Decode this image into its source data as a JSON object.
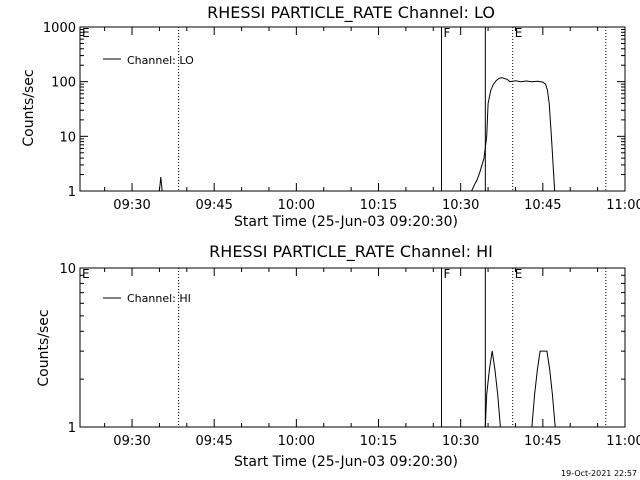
{
  "footer": {
    "timestamp": "19-Oct-2021 22:57"
  },
  "chart_data": [
    {
      "type": "line",
      "title": "RHESSI PARTICLE_RATE Channel: LO",
      "xlabel": "Start Time (25-Jun-03 09:20:30)",
      "ylabel": "Counts/sec",
      "yscale": "log",
      "xlim": [
        "09:20:30",
        "11:00:00"
      ],
      "ylim": [
        1,
        1000
      ],
      "xticks": [
        "09:30",
        "09:45",
        "10:00",
        "10:15",
        "10:30",
        "10:45",
        "11:00"
      ],
      "yticks": [
        "1",
        "10",
        "100",
        "1000"
      ],
      "legend": {
        "label": "Channel: LO",
        "placement": "top-left"
      },
      "markers": [
        {
          "label": "E",
          "time": "09:20:30",
          "style": "solid"
        },
        {
          "label": "",
          "time": "09:38:30",
          "style": "dotted"
        },
        {
          "label": "F",
          "time": "10:26:30",
          "style": "solid"
        },
        {
          "label": "",
          "time": "10:34:30",
          "style": "solid"
        },
        {
          "label": "E",
          "time": "10:39:30",
          "style": "dotted"
        },
        {
          "label": "",
          "time": "10:56:30",
          "style": "dotted"
        }
      ],
      "series": [
        {
          "name": "Channel: LO",
          "points": [
            [
              "09:35:00",
              1
            ],
            [
              "09:35:15",
              1.8
            ],
            [
              "09:35:30",
              1
            ],
            [
              "10:32:00",
              1
            ],
            [
              "10:32:30",
              1.3
            ],
            [
              "10:33:00",
              1.6
            ],
            [
              "10:33:30",
              2.2
            ],
            [
              "10:34:15",
              4
            ],
            [
              "10:34:45",
              10
            ],
            [
              "10:35:00",
              40
            ],
            [
              "10:35:30",
              70
            ],
            [
              "10:36:00",
              90
            ],
            [
              "10:36:30",
              105
            ],
            [
              "10:37:00",
              115
            ],
            [
              "10:37:30",
              118
            ],
            [
              "10:38:30",
              110
            ],
            [
              "10:39:00",
              100
            ],
            [
              "10:40:00",
              104
            ],
            [
              "10:41:00",
              100
            ],
            [
              "10:42:00",
              103
            ],
            [
              "10:43:00",
              100
            ],
            [
              "10:44:00",
              102
            ],
            [
              "10:45:00",
              98
            ],
            [
              "10:45:30",
              90
            ],
            [
              "10:45:50",
              70
            ],
            [
              "10:46:10",
              40
            ],
            [
              "10:46:30",
              12
            ],
            [
              "10:46:45",
              5
            ],
            [
              "10:47:00",
              1.8
            ],
            [
              "10:47:10",
              1
            ]
          ]
        }
      ]
    },
    {
      "type": "line",
      "title": "RHESSI PARTICLE_RATE Channel: HI",
      "xlabel": "Start Time (25-Jun-03 09:20:30)",
      "ylabel": "Counts/sec",
      "yscale": "log",
      "xlim": [
        "09:20:30",
        "11:00:00"
      ],
      "ylim": [
        1,
        10
      ],
      "xticks": [
        "09:30",
        "09:45",
        "10:00",
        "10:15",
        "10:30",
        "10:45",
        "11:00"
      ],
      "yticks": [
        "1",
        "10"
      ],
      "legend": {
        "label": "Channel: HI",
        "placement": "top-left"
      },
      "markers": [
        {
          "label": "E",
          "time": "09:20:30",
          "style": "solid"
        },
        {
          "label": "",
          "time": "09:38:30",
          "style": "dotted"
        },
        {
          "label": "F",
          "time": "10:26:30",
          "style": "solid"
        },
        {
          "label": "",
          "time": "10:34:30",
          "style": "solid"
        },
        {
          "label": "E",
          "time": "10:39:30",
          "style": "dotted"
        },
        {
          "label": "",
          "time": "10:56:30",
          "style": "dotted"
        }
      ],
      "series": [
        {
          "name": "Channel: HI",
          "points": [
            [
              "10:34:30",
              1
            ],
            [
              "10:34:45",
              1.6
            ],
            [
              "10:35:15",
              2.3
            ],
            [
              "10:35:45",
              3
            ],
            [
              "10:36:15",
              2.3
            ],
            [
              "10:36:45",
              1.6
            ],
            [
              "10:37:15",
              1
            ],
            [
              "10:43:00",
              1
            ],
            [
              "10:43:30",
              1.6
            ],
            [
              "10:44:00",
              2.3
            ],
            [
              "10:44:30",
              3
            ],
            [
              "10:45:45",
              3
            ],
            [
              "10:46:15",
              2.3
            ],
            [
              "10:46:45",
              1.6
            ],
            [
              "10:47:15",
              1
            ]
          ]
        }
      ]
    }
  ]
}
